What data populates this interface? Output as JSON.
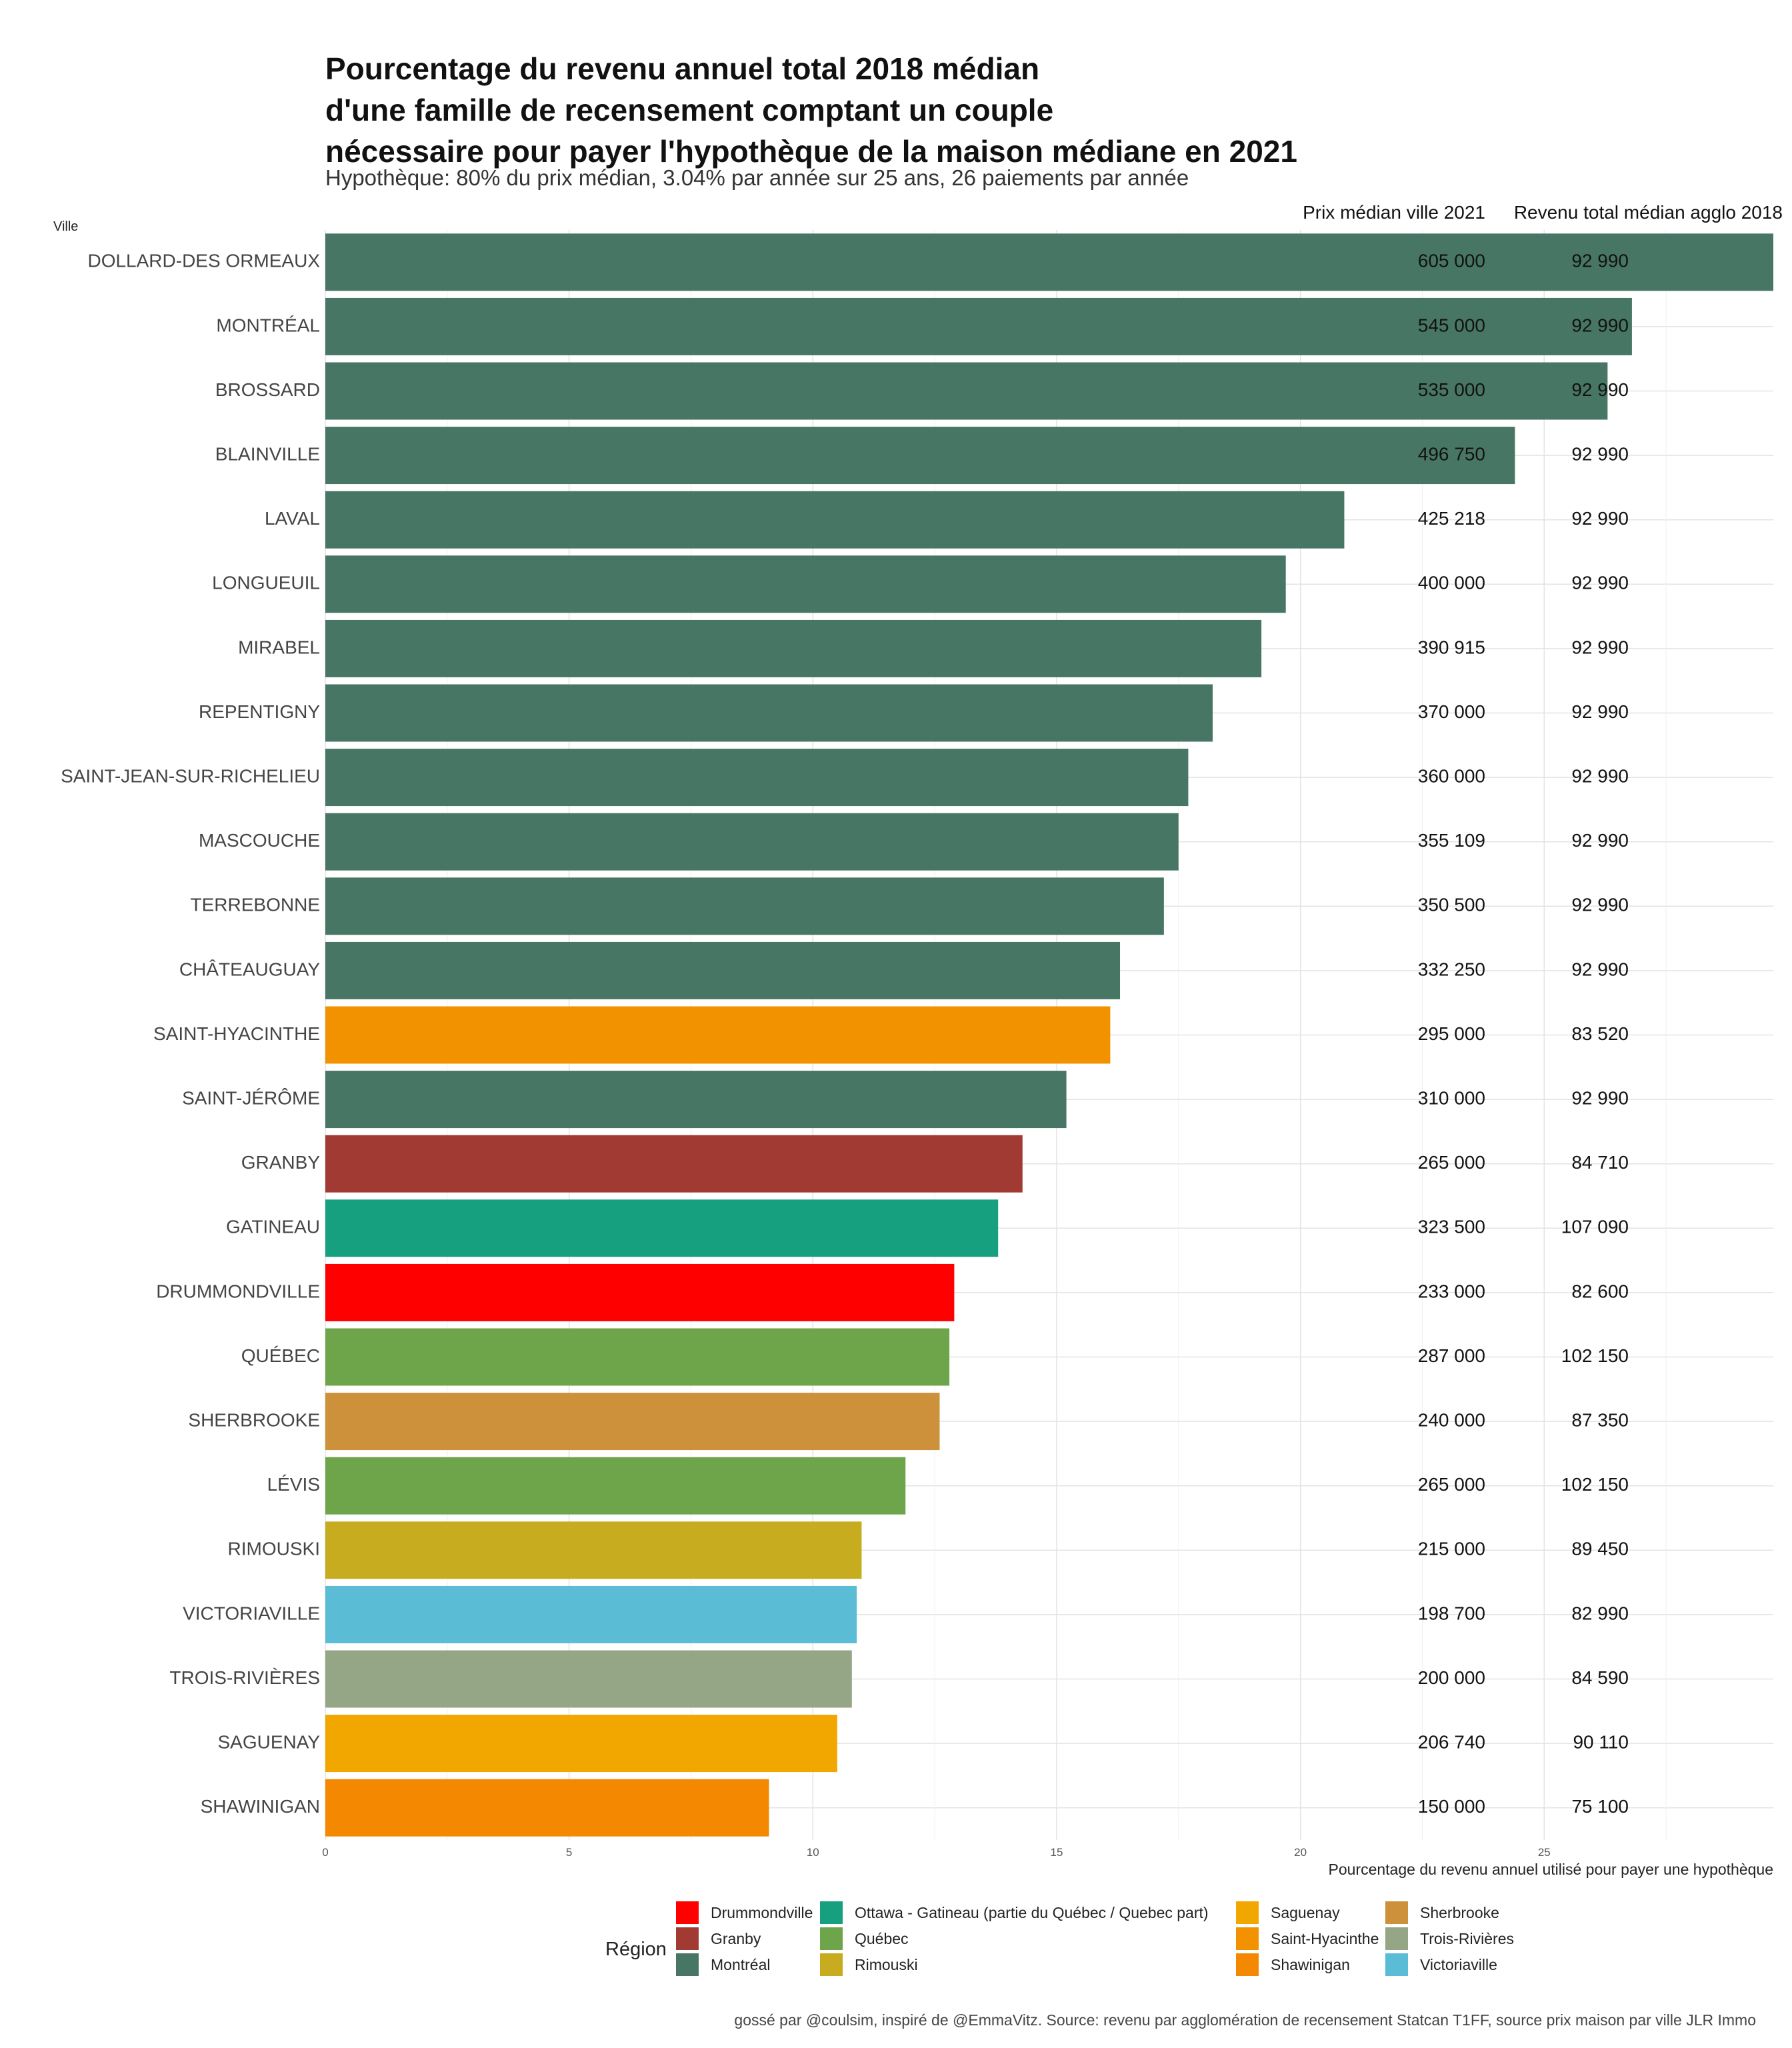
{
  "title_lines": [
    "Pourcentage du revenu annuel total 2018 médian",
    "d'une famille de recensement comptant un couple",
    "nécessaire pour payer l'hypothèque de la maison médiane en 2021"
  ],
  "subtitle": "Hypothèque: 80% du prix médian, 3.04% par année sur 25 ans, 26 paiements par année",
  "caption": "gossé par @coulsim, inspiré de @EmmaVitz.  Source: revenu par agglomération de recensement Statcan T1FF, source prix maison par ville JLR Immo",
  "colors": {
    "Drummondville": "#FF0000",
    "Granby": "#A23A34",
    "Montréal": "#487664",
    "Ottawa - Gatineau (partie du Québec / Quebec part)": "#17A07F",
    "Québec": "#6FA54A",
    "Rimouski": "#C6AC1E",
    "Saguenay": "#F2A600",
    "Saint-Hyacinthe": "#F39200",
    "Shawinigan": "#F48800",
    "Sherbrooke": "#CC913A",
    "Trois-Rivières": "#94A686",
    "Victoriaville": "#5BBCD6"
  },
  "legend": {
    "title": "Région",
    "items": [
      "Drummondville",
      "Granby",
      "Montréal",
      "Ottawa - Gatineau (partie du Québec / Quebec part)",
      "Québec",
      "Rimouski",
      "Saguenay",
      "Saint-Hyacinthe",
      "Shawinigan",
      "Sherbrooke",
      "Trois-Rivières",
      "Victoriaville"
    ]
  },
  "chart_data": {
    "type": "bar",
    "orientation": "horizontal",
    "ylabel": "Ville",
    "xlabel": "Pourcentage du revenu annuel utilisé pour payer une hypothèque",
    "xlim": [
      0,
      29.7
    ],
    "xticks": [
      0,
      5,
      10,
      15,
      20,
      25
    ],
    "grid": true,
    "price_header": "Prix médian ville 2021",
    "income_header": "Revenu total médian agglo 2018",
    "bars": [
      {
        "city": "DOLLARD-DES ORMEAUX",
        "value": 29.7,
        "region": "Montréal",
        "price": "605 000",
        "income": "92 990"
      },
      {
        "city": "MONTRÉAL",
        "value": 26.8,
        "region": "Montréal",
        "price": "545 000",
        "income": "92 990"
      },
      {
        "city": "BROSSARD",
        "value": 26.3,
        "region": "Montréal",
        "price": "535 000",
        "income": "92 990"
      },
      {
        "city": "BLAINVILLE",
        "value": 24.4,
        "region": "Montréal",
        "price": "496 750",
        "income": "92 990"
      },
      {
        "city": "LAVAL",
        "value": 20.9,
        "region": "Montréal",
        "price": "425 218",
        "income": "92 990"
      },
      {
        "city": "LONGUEUIL",
        "value": 19.7,
        "region": "Montréal",
        "price": "400 000",
        "income": "92 990"
      },
      {
        "city": "MIRABEL",
        "value": 19.2,
        "region": "Montréal",
        "price": "390 915",
        "income": "92 990"
      },
      {
        "city": "REPENTIGNY",
        "value": 18.2,
        "region": "Montréal",
        "price": "370 000",
        "income": "92 990"
      },
      {
        "city": "SAINT-JEAN-SUR-RICHELIEU",
        "value": 17.7,
        "region": "Montréal",
        "price": "360 000",
        "income": "92 990"
      },
      {
        "city": "MASCOUCHE",
        "value": 17.5,
        "region": "Montréal",
        "price": "355 109",
        "income": "92 990"
      },
      {
        "city": "TERREBONNE",
        "value": 17.2,
        "region": "Montréal",
        "price": "350 500",
        "income": "92 990"
      },
      {
        "city": "CHÂTEAUGUAY",
        "value": 16.3,
        "region": "Montréal",
        "price": "332 250",
        "income": "92 990"
      },
      {
        "city": "SAINT-HYACINTHE",
        "value": 16.1,
        "region": "Saint-Hyacinthe",
        "price": "295 000",
        "income": "83 520"
      },
      {
        "city": "SAINT-JÉRÔME",
        "value": 15.2,
        "region": "Montréal",
        "price": "310 000",
        "income": "92 990"
      },
      {
        "city": "GRANBY",
        "value": 14.3,
        "region": "Granby",
        "price": "265 000",
        "income": "84 710"
      },
      {
        "city": "GATINEAU",
        "value": 13.8,
        "region": "Ottawa - Gatineau (partie du Québec / Quebec part)",
        "price": "323 500",
        "income": "107 090"
      },
      {
        "city": "DRUMMONDVILLE",
        "value": 12.9,
        "region": "Drummondville",
        "price": "233 000",
        "income": "82 600"
      },
      {
        "city": "QUÉBEC",
        "value": 12.8,
        "region": "Québec",
        "price": "287 000",
        "income": "102 150"
      },
      {
        "city": "SHERBROOKE",
        "value": 12.6,
        "region": "Sherbrooke",
        "price": "240 000",
        "income": "87 350"
      },
      {
        "city": "LÉVIS",
        "value": 11.9,
        "region": "Québec",
        "price": "265 000",
        "income": "102 150"
      },
      {
        "city": "RIMOUSKI",
        "value": 11.0,
        "region": "Rimouski",
        "price": "215 000",
        "income": "89 450"
      },
      {
        "city": "VICTORIAVILLE",
        "value": 10.9,
        "region": "Victoriaville",
        "price": "198 700",
        "income": "82 990"
      },
      {
        "city": "TROIS-RIVIÈRES",
        "value": 10.8,
        "region": "Trois-Rivières",
        "price": "200 000",
        "income": "84 590"
      },
      {
        "city": "SAGUENAY",
        "value": 10.5,
        "region": "Saguenay",
        "price": "206 740",
        "income": "90 110"
      },
      {
        "city": "SHAWINIGAN",
        "value": 9.1,
        "region": "Shawinigan",
        "price": "150 000",
        "income": "75 100"
      }
    ]
  }
}
